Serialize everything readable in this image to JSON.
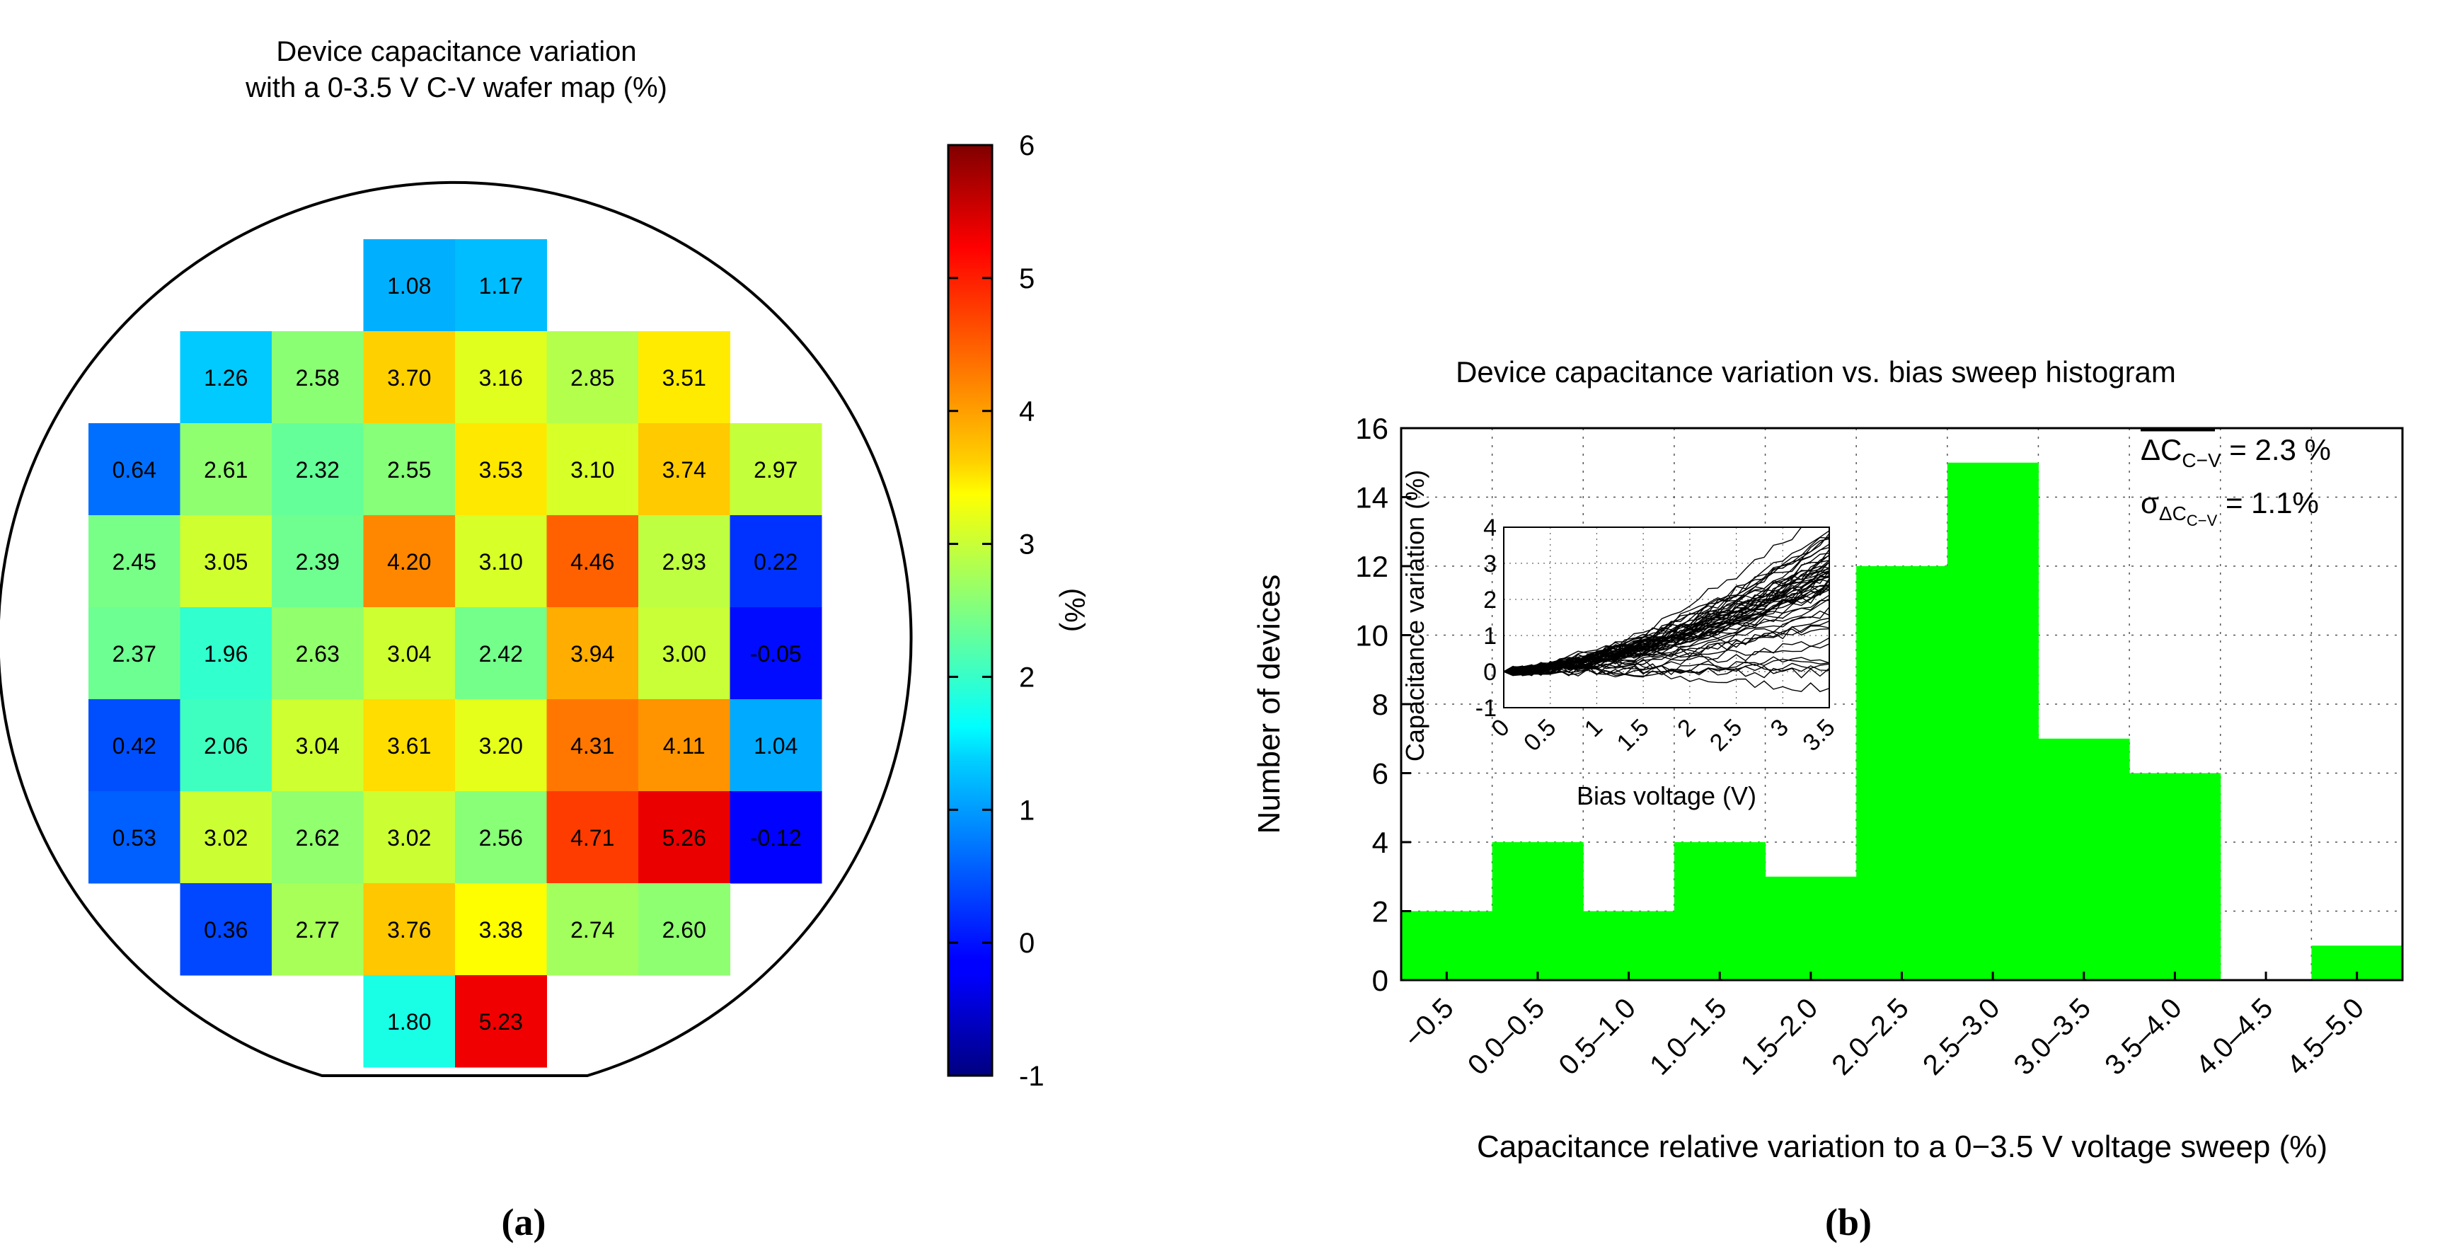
{
  "panel_a_label": "(a)",
  "panel_b_label": "(b)",
  "panel_a": {
    "title_line1": "Device capacitance variation",
    "title_line2": "with a 0-3.5 V C-V wafer map (%)",
    "colorbar_label": "(%)",
    "colorbar_ticks": [
      "6",
      "5",
      "4",
      "3",
      "2",
      "1",
      "0",
      "-1"
    ],
    "colorbar_range": [
      -1,
      6
    ]
  },
  "panel_b": {
    "title": "Device capacitance variation vs. bias sweep histogram",
    "xlabel": "Capacitance relative variation to a 0−3.5 V voltage sweep (%)",
    "ylabel": "Number of devices",
    "mean_label": "ΔC",
    "mean_sub": "C−V",
    "mean_value": " = 2.3 %",
    "sigma_label": "σ",
    "sigma_sub": "ΔC",
    "sigma_subsub": "C−V",
    "sigma_value": " = 1.1%",
    "inset_xlabel": "Bias voltage (V)",
    "inset_ylabel": "Capacitance variation (%)"
  },
  "chart_data": [
    {
      "type": "heatmap",
      "title": "Device capacitance variation with a 0-3.5 V C-V wafer map (%)",
      "colorbar_label": "(%)",
      "zlim": [
        -1,
        6
      ],
      "colormap": "jet",
      "cells": [
        {
          "row": 0,
          "col": 3,
          "value": "1.08"
        },
        {
          "row": 0,
          "col": 4,
          "value": "1.17"
        },
        {
          "row": 1,
          "col": 1,
          "value": "1.26"
        },
        {
          "row": 1,
          "col": 2,
          "value": "2.58"
        },
        {
          "row": 1,
          "col": 3,
          "value": "3.70"
        },
        {
          "row": 1,
          "col": 4,
          "value": "3.16"
        },
        {
          "row": 1,
          "col": 5,
          "value": "2.85"
        },
        {
          "row": 1,
          "col": 6,
          "value": "3.51"
        },
        {
          "row": 2,
          "col": 0,
          "value": "0.64"
        },
        {
          "row": 2,
          "col": 1,
          "value": "2.61"
        },
        {
          "row": 2,
          "col": 2,
          "value": "2.32"
        },
        {
          "row": 2,
          "col": 3,
          "value": "2.55"
        },
        {
          "row": 2,
          "col": 4,
          "value": "3.53"
        },
        {
          "row": 2,
          "col": 5,
          "value": "3.10"
        },
        {
          "row": 2,
          "col": 6,
          "value": "3.74"
        },
        {
          "row": 2,
          "col": 7,
          "value": "2.97"
        },
        {
          "row": 3,
          "col": 0,
          "value": "2.45"
        },
        {
          "row": 3,
          "col": 1,
          "value": "3.05"
        },
        {
          "row": 3,
          "col": 2,
          "value": "2.39"
        },
        {
          "row": 3,
          "col": 3,
          "value": "4.20"
        },
        {
          "row": 3,
          "col": 4,
          "value": "3.10"
        },
        {
          "row": 3,
          "col": 5,
          "value": "4.46"
        },
        {
          "row": 3,
          "col": 6,
          "value": "2.93"
        },
        {
          "row": 3,
          "col": 7,
          "value": "0.22"
        },
        {
          "row": 4,
          "col": 0,
          "value": "2.37"
        },
        {
          "row": 4,
          "col": 1,
          "value": "1.96"
        },
        {
          "row": 4,
          "col": 2,
          "value": "2.63"
        },
        {
          "row": 4,
          "col": 3,
          "value": "3.04"
        },
        {
          "row": 4,
          "col": 4,
          "value": "2.42"
        },
        {
          "row": 4,
          "col": 5,
          "value": "3.94"
        },
        {
          "row": 4,
          "col": 6,
          "value": "3.00"
        },
        {
          "row": 4,
          "col": 7,
          "value": "-0.05"
        },
        {
          "row": 5,
          "col": 0,
          "value": "0.42"
        },
        {
          "row": 5,
          "col": 1,
          "value": "2.06"
        },
        {
          "row": 5,
          "col": 2,
          "value": "3.04"
        },
        {
          "row": 5,
          "col": 3,
          "value": "3.61"
        },
        {
          "row": 5,
          "col": 4,
          "value": "3.20"
        },
        {
          "row": 5,
          "col": 5,
          "value": "4.31"
        },
        {
          "row": 5,
          "col": 6,
          "value": "4.11"
        },
        {
          "row": 5,
          "col": 7,
          "value": "1.04"
        },
        {
          "row": 6,
          "col": 0,
          "value": "0.53"
        },
        {
          "row": 6,
          "col": 1,
          "value": "3.02"
        },
        {
          "row": 6,
          "col": 2,
          "value": "2.62"
        },
        {
          "row": 6,
          "col": 3,
          "value": "3.02"
        },
        {
          "row": 6,
          "col": 4,
          "value": "2.56"
        },
        {
          "row": 6,
          "col": 5,
          "value": "4.71"
        },
        {
          "row": 6,
          "col": 6,
          "value": "5.26"
        },
        {
          "row": 6,
          "col": 7,
          "value": "-0.12"
        },
        {
          "row": 7,
          "col": 1,
          "value": "0.36"
        },
        {
          "row": 7,
          "col": 2,
          "value": "2.77"
        },
        {
          "row": 7,
          "col": 3,
          "value": "3.76"
        },
        {
          "row": 7,
          "col": 4,
          "value": "3.38"
        },
        {
          "row": 7,
          "col": 5,
          "value": "2.74"
        },
        {
          "row": 7,
          "col": 6,
          "value": "2.60"
        },
        {
          "row": 8,
          "col": 3,
          "value": "1.80"
        },
        {
          "row": 8,
          "col": 4,
          "value": "5.23"
        }
      ]
    },
    {
      "type": "bar",
      "title": "Device capacitance variation vs. bias sweep histogram",
      "xlabel": "Capacitance relative variation to a 0−3.5 V voltage sweep (%)",
      "ylabel": "Number of devices",
      "categories": [
        "−0.5",
        "0.0–0.5",
        "0.5–1.0",
        "1.0–1.5",
        "1.5–2.0",
        "2.0–2.5",
        "2.5–3.0",
        "3.0–3.5",
        "3.5–4.0",
        "4.0–4.5",
        "4.5–5.0"
      ],
      "values": [
        2,
        4,
        2,
        4,
        3,
        12,
        15,
        7,
        6,
        0,
        1
      ],
      "ylim": [
        0,
        16
      ],
      "yticks": [
        "0",
        "2",
        "4",
        "6",
        "8",
        "10",
        "12",
        "14",
        "16"
      ],
      "bar_color": "#00ff00",
      "grid": true
    },
    {
      "type": "line",
      "role": "inset",
      "xlabel": "Bias voltage (V)",
      "ylabel": "Capacitance variation (%)",
      "xlim": [
        0,
        3.5
      ],
      "ylim": [
        -1,
        4
      ],
      "xticks": [
        "0",
        "0.5",
        "1",
        "1.5",
        "2",
        "2.5",
        "3",
        "3.5"
      ],
      "yticks": [
        "-1",
        "0",
        "1",
        "2",
        "3",
        "4"
      ],
      "line_color": "#000000",
      "grid": true
    }
  ]
}
